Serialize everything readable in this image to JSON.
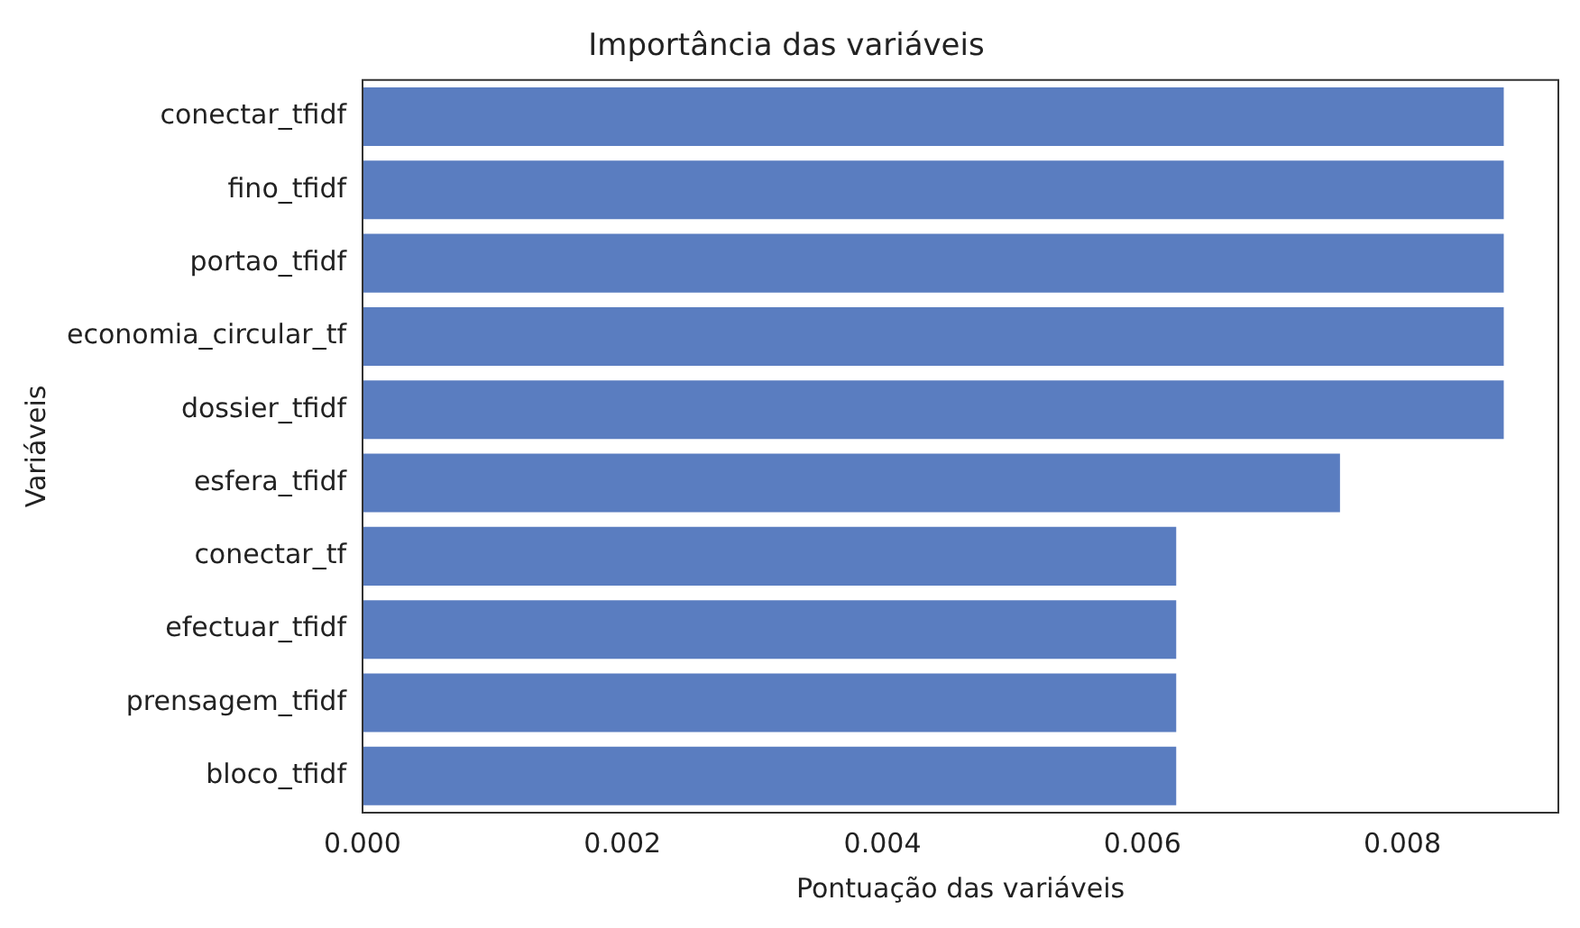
{
  "chart_data": {
    "type": "bar",
    "orientation": "horizontal",
    "title": "Importância das variáveis",
    "xlabel": "Pontuação das variáveis",
    "ylabel": "Variáveis",
    "categories": [
      "conectar_tfidf",
      "fino_tfidf",
      "portao_tfidf",
      "economia_circular_tf",
      "dossier_tfidf",
      "esfera_tfidf",
      "conectar_tf",
      "efectuar_tfidf",
      "prensagem_tfidf",
      "bloco_tfidf"
    ],
    "values": [
      0.00878,
      0.00878,
      0.00878,
      0.00878,
      0.00878,
      0.00752,
      0.00626,
      0.00626,
      0.00626,
      0.00626
    ],
    "color": "#5a7dc0",
    "xlim": [
      0,
      0.0092
    ],
    "xticks": [
      {
        "value": 0,
        "label": "0.000"
      },
      {
        "value": 0.002,
        "label": "0.002"
      },
      {
        "value": 0.004,
        "label": "0.004"
      },
      {
        "value": 0.006,
        "label": "0.006"
      },
      {
        "value": 0.008,
        "label": "0.008"
      }
    ],
    "grid": false,
    "legend": false
  }
}
